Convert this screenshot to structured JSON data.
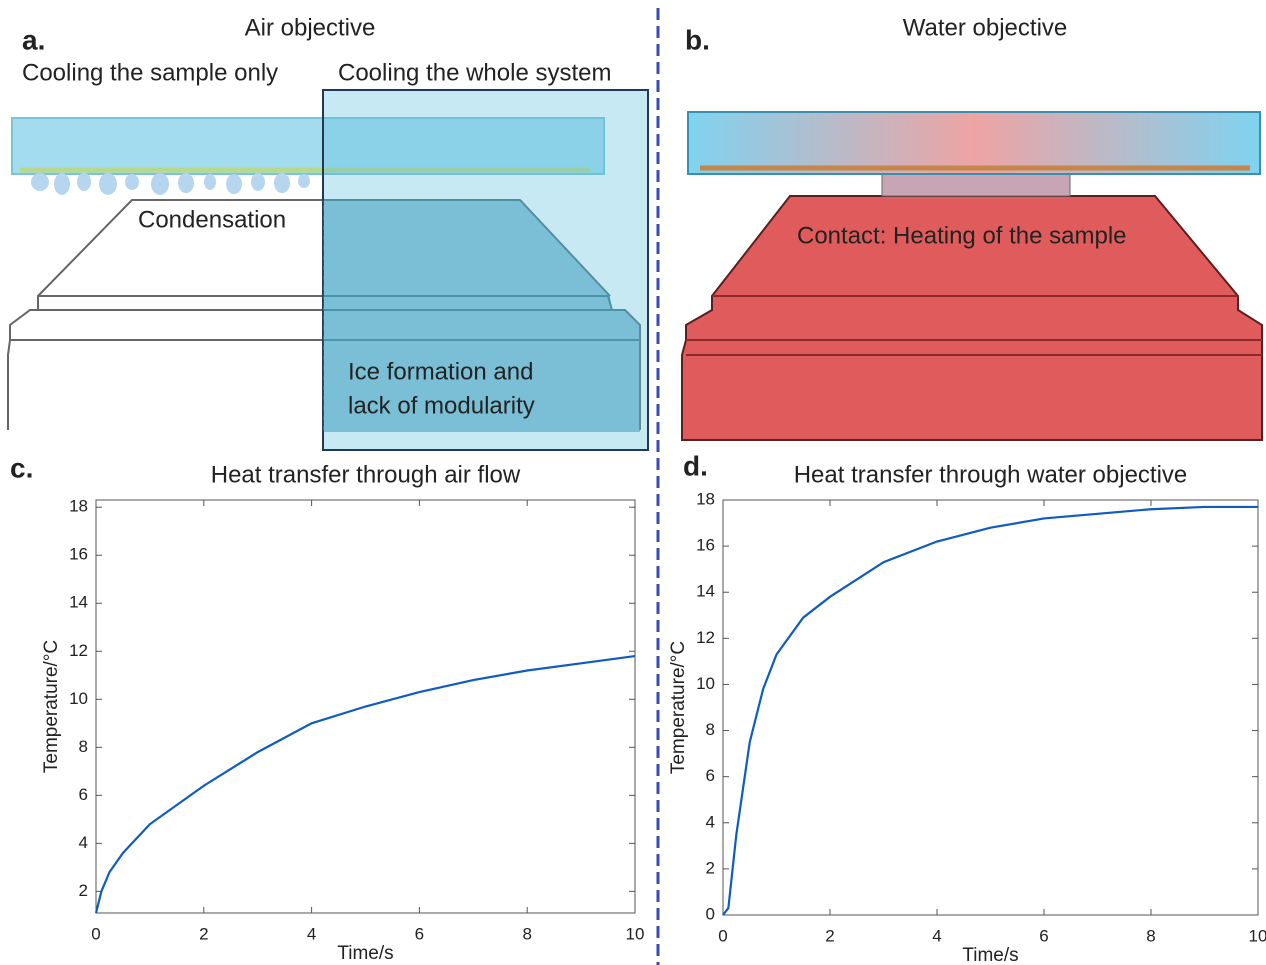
{
  "panels": {
    "a": {
      "label": "a.",
      "title": "Air objective",
      "left_caption": "Cooling the sample only",
      "right_caption": "Cooling the whole system",
      "condensation": "Condensation",
      "ice_line1": "Ice formation and",
      "ice_line2": "lack of modularity"
    },
    "b": {
      "label": "b.",
      "title": "Water objective",
      "contact": "Contact: Heating of the sample"
    },
    "c": {
      "label": "c."
    },
    "d": {
      "label": "d."
    }
  },
  "chart_data": [
    {
      "type": "line",
      "title": "Heat transfer through air flow",
      "xlabel": "Time/s",
      "ylabel": "Temperature/°C",
      "x": [
        0,
        0.1,
        0.25,
        0.5,
        1,
        2,
        3,
        4,
        5,
        6,
        7,
        8,
        9,
        10
      ],
      "values": [
        1.1,
        2.0,
        2.8,
        3.6,
        4.8,
        6.4,
        7.8,
        9.0,
        9.7,
        10.3,
        10.8,
        11.2,
        11.5,
        11.8
      ],
      "color": "#0f5cbf",
      "xlim": [
        0,
        10
      ],
      "ylim": [
        1.1,
        18.3
      ],
      "xticks": [
        0,
        2,
        4,
        6,
        8,
        10
      ],
      "yticks": [
        2,
        4,
        6,
        8,
        10,
        12,
        14,
        16,
        18
      ]
    },
    {
      "type": "line",
      "title": "Heat transfer through water objective",
      "xlabel": "Time/s",
      "ylabel": "Temperature/°C",
      "x": [
        0,
        0.1,
        0.25,
        0.5,
        0.75,
        1,
        1.5,
        2,
        3,
        4,
        5,
        6,
        7,
        8,
        9,
        10
      ],
      "values": [
        0,
        0.3,
        3.5,
        7.5,
        9.8,
        11.3,
        12.9,
        13.8,
        15.3,
        16.2,
        16.8,
        17.2,
        17.4,
        17.6,
        17.7,
        17.7
      ],
      "color": "#0f5cbf",
      "xlim": [
        0,
        10
      ],
      "ylim": [
        0,
        18
      ],
      "xticks": [
        0,
        2,
        4,
        6,
        8,
        10
      ],
      "yticks": [
        0,
        2,
        4,
        6,
        8,
        10,
        12,
        14,
        16,
        18
      ]
    }
  ]
}
